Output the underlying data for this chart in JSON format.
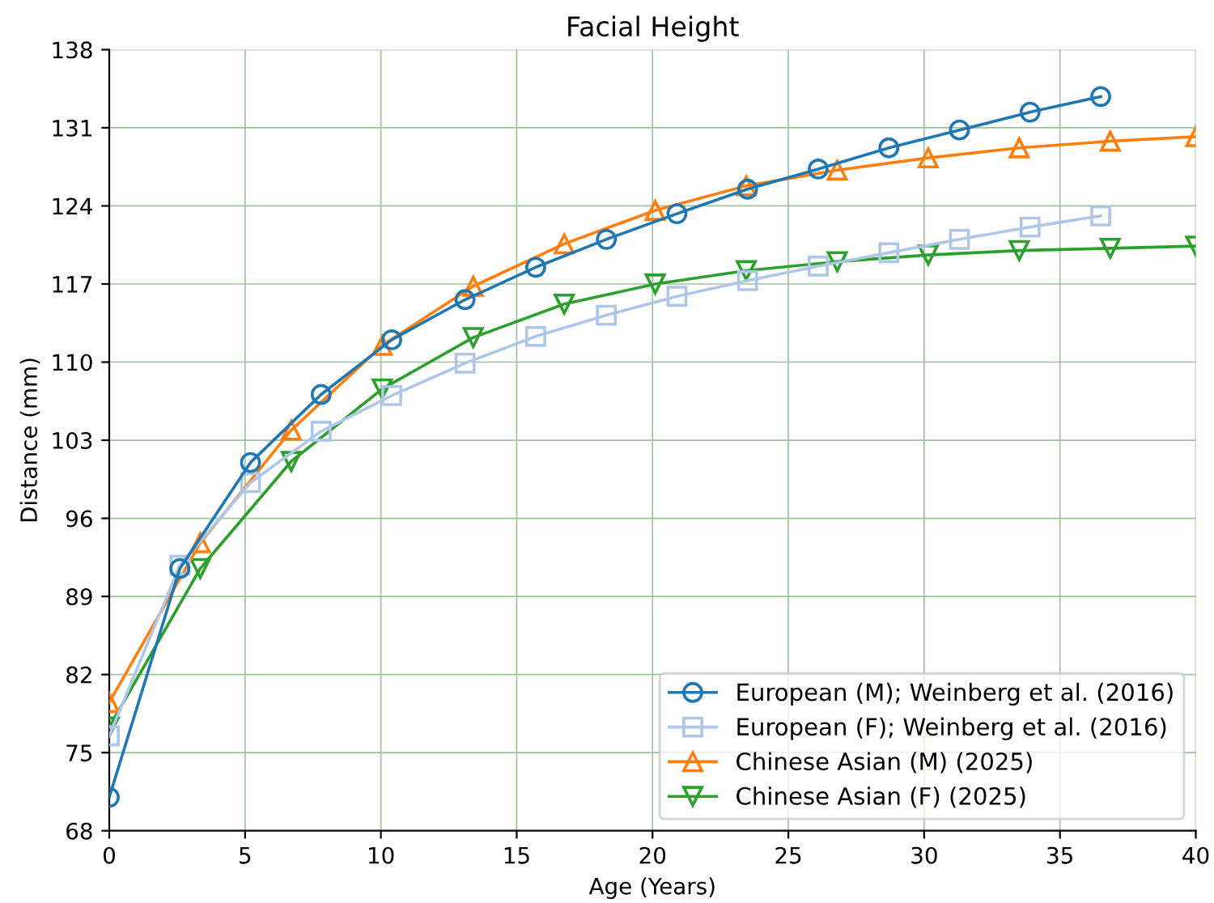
{
  "chart_data": {
    "type": "line",
    "title": "Facial Height",
    "xlabel": "Age (Years)",
    "ylabel": "Distance (mm)",
    "xlim": [
      0,
      40
    ],
    "xticks": [
      0,
      5,
      10,
      15,
      20,
      25,
      30,
      35,
      40
    ],
    "ylim": [
      68,
      138
    ],
    "yticks": [
      68,
      75,
      82,
      89,
      96,
      103,
      110,
      117,
      124,
      131,
      138
    ],
    "grid": true,
    "legend": "bottom right",
    "series": [
      {
        "name": "European (M); Weinberg et al. (2016)",
        "color": "#1f77b4",
        "marker": "circle",
        "x": [
          0,
          2.6,
          5.2,
          7.8,
          10.4,
          13.1,
          15.7,
          18.3,
          20.9,
          23.5,
          26.1,
          28.7,
          31.3,
          33.9,
          36.5
        ],
        "values": [
          71.0,
          91.5,
          101.0,
          107.1,
          112.0,
          115.6,
          118.5,
          121.0,
          123.3,
          125.5,
          127.3,
          129.2,
          130.8,
          132.4,
          133.8
        ]
      },
      {
        "name": "European (F); Weinberg et al. (2016)",
        "color": "#aec7e8",
        "marker": "square",
        "x": [
          0,
          2.6,
          5.2,
          7.8,
          10.4,
          13.1,
          15.7,
          18.3,
          20.9,
          23.5,
          26.1,
          28.7,
          31.3,
          33.9,
          36.5
        ],
        "values": [
          76.5,
          91.8,
          99.2,
          103.8,
          107.0,
          109.9,
          112.3,
          114.2,
          115.9,
          117.3,
          118.6,
          119.8,
          121.0,
          122.1,
          123.1
        ]
      },
      {
        "name": "Chinese Asian (M) (2025)",
        "color": "#ff7f0e",
        "marker": "triangle",
        "x": [
          0,
          3.35,
          6.7,
          10.05,
          13.4,
          16.75,
          20.1,
          23.45,
          26.8,
          30.15,
          33.5,
          36.85,
          40
        ],
        "values": [
          79.5,
          93.8,
          103.9,
          111.5,
          116.8,
          120.6,
          123.6,
          125.8,
          127.2,
          128.3,
          129.2,
          129.8,
          130.2
        ]
      },
      {
        "name": "Chinese Asian (F) (2025)",
        "color": "#2ca02c",
        "marker": "triangle_down",
        "x": [
          0,
          3.35,
          6.7,
          10.05,
          13.4,
          16.75,
          20.1,
          23.45,
          26.8,
          30.15,
          33.5,
          36.85,
          40
        ],
        "values": [
          77.3,
          91.5,
          101.1,
          107.6,
          112.2,
          115.2,
          117.0,
          118.2,
          119.0,
          119.6,
          120.0,
          120.2,
          120.4
        ]
      }
    ]
  }
}
